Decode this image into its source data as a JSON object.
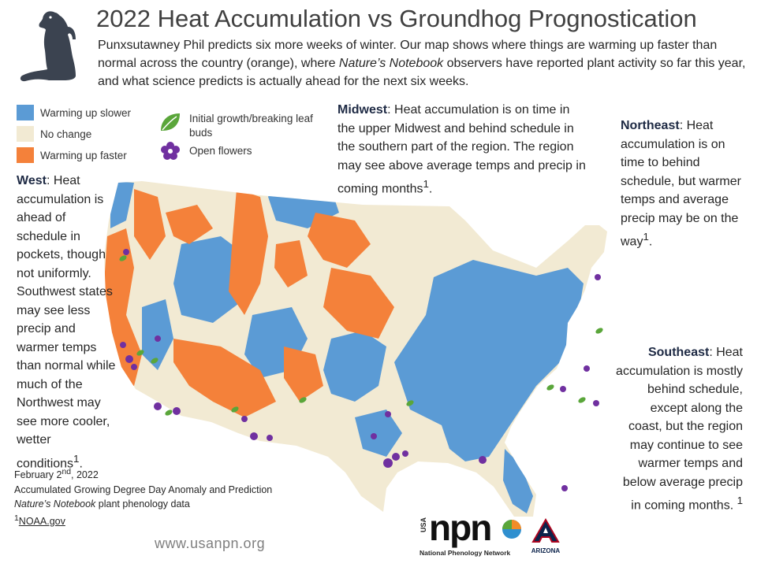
{
  "title": "2022 Heat Accumulation vs Groundhog Prognostication",
  "subtitle": {
    "before_italic": "Punxsutawney Phil predicts six more weeks of winter. Our map shows where things are warming up faster than normal across the country (orange), where ",
    "italic": "Nature’s Notebook",
    "after_italic": " observers have reported plant activity so far this year, and what science predicts is actually ahead for the next six weeks."
  },
  "legend": {
    "colors": [
      {
        "label": "Warming up slower",
        "color": "#5b9bd5"
      },
      {
        "label": "No change",
        "color": "#f2ead3"
      },
      {
        "label": "Warming up faster",
        "color": "#f4813a"
      }
    ],
    "symbols": [
      {
        "label": "Initial growth/breaking leaf buds",
        "icon": "leaf-icon",
        "color": "#5aa63a"
      },
      {
        "label": "Open flowers",
        "icon": "flower-icon",
        "color": "#7030a0"
      }
    ]
  },
  "regions": {
    "west": {
      "name": "West",
      "text": "Heat accumulation is ahead of schedule in pockets, though not uniformly. Southwest states may see less precip and warmer temps than normal while much of the Northwest may see more cooler, wetter conditions",
      "sup": "1",
      "end": "."
    },
    "midwest": {
      "name": "Midwest",
      "text": "Heat accumulation is on time in the upper Midwest and behind schedule in the southern part of the region. The region may see above average temps and precip in coming months",
      "sup": "1",
      "end": "."
    },
    "northeast": {
      "name": "Northeast",
      "text": "Heat accumulation is on time to behind schedule, but warmer temps and average precip may be on the way",
      "sup": "1",
      "end": "."
    },
    "southeast": {
      "name": "Southeast",
      "text": "Heat accumulation is mostly behind schedule, except along the coast, but the region may continue to see warmer temps and below average precip in coming months. ",
      "sup": "1",
      "end": ""
    }
  },
  "footer": {
    "date_day": "February 2",
    "date_sup": "nd",
    "date_year": ", 2022",
    "line2": "Accumulated Growing Degree Day Anomaly and Prediction",
    "line3_italic": "Nature’s Notebook",
    "line3_rest": " plant phenology data",
    "line4_sup": "1",
    "line4_link": "NOAA.gov"
  },
  "url": "www.usanpn.org",
  "logos": {
    "usa": "USA",
    "npn": "npn",
    "npn_full": "National Phenology Network",
    "arizona": "ARIZONA"
  },
  "colors": {
    "slower": "#5b9bd5",
    "nochange": "#f2ead3",
    "faster": "#f4813a",
    "leaf": "#5aa63a",
    "flower": "#7030a0",
    "groundhog": "#3b4350"
  }
}
